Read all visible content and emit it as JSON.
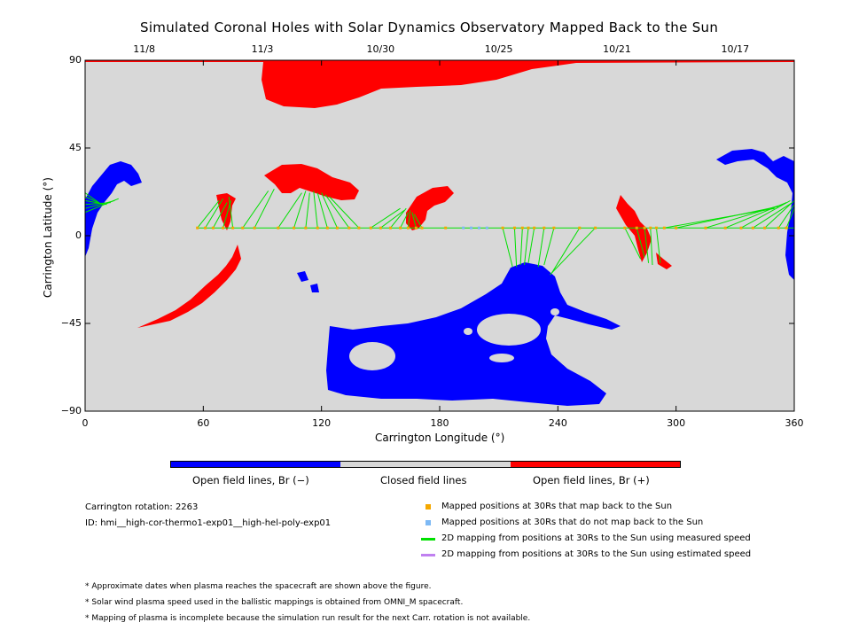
{
  "chart_data": {
    "type": "scatter",
    "title": "Simulated Coronal Holes with Solar Dynamics Observatory Mapped Back to the Sun",
    "xlabel": "Carrington Longitude (°)",
    "ylabel": "Carrington Latitude (°)",
    "xlim": [
      0,
      360
    ],
    "ylim": [
      -90,
      90
    ],
    "xticks": [
      "0",
      "60",
      "120",
      "180",
      "240",
      "300",
      "360"
    ],
    "yticks": [
      "90",
      "45",
      "0",
      "−45",
      "−90"
    ],
    "top_axis_dates": [
      {
        "label": "11/8",
        "lon": 30
      },
      {
        "label": "11/3",
        "lon": 90
      },
      {
        "label": "10/30",
        "lon": 150
      },
      {
        "label": "10/25",
        "lon": 210
      },
      {
        "label": "10/21",
        "lon": 270
      },
      {
        "label": "10/17",
        "lon": 330
      }
    ],
    "colors": {
      "closed": "#d8d8d8",
      "open_negative": "#0000ff",
      "open_positive": "#ff0000",
      "mapped": "#f5a800",
      "unmapped": "#7db9f5",
      "measured_speed": "#00e000",
      "estimated_speed": "#c080f0"
    },
    "colorbar": {
      "labels": [
        "Open field lines, Br (−)",
        "Closed field lines",
        "Open field lines, Br (+)"
      ]
    },
    "series": [
      {
        "name": "Mapped positions at 30Rs that map back to the Sun",
        "points": [
          [
            57,
            4
          ],
          [
            61,
            4
          ],
          [
            65,
            4
          ],
          [
            70,
            4
          ],
          [
            75,
            4
          ],
          [
            80,
            4
          ],
          [
            86,
            4
          ],
          [
            98,
            4
          ],
          [
            106,
            4
          ],
          [
            112,
            4
          ],
          [
            118,
            4
          ],
          [
            123,
            4
          ],
          [
            128,
            4
          ],
          [
            134,
            4
          ],
          [
            139,
            4
          ],
          [
            145,
            4
          ],
          [
            150,
            4
          ],
          [
            155,
            4
          ],
          [
            160,
            4
          ],
          [
            164,
            4
          ],
          [
            168,
            4
          ],
          [
            171,
            4
          ],
          [
            183,
            4
          ],
          [
            212,
            4
          ],
          [
            218,
            4
          ],
          [
            222,
            4
          ],
          [
            225,
            4
          ],
          [
            228,
            4
          ],
          [
            233,
            4
          ],
          [
            238,
            4
          ],
          [
            251,
            4
          ],
          [
            259,
            4
          ],
          [
            274,
            4
          ],
          [
            280,
            4
          ],
          [
            284,
            4
          ],
          [
            287,
            4
          ],
          [
            290,
            4
          ],
          [
            294,
            4
          ],
          [
            300,
            4
          ],
          [
            315,
            4
          ],
          [
            325,
            4
          ],
          [
            333,
            4
          ],
          [
            339,
            4
          ],
          [
            345,
            4
          ],
          [
            352,
            4
          ],
          [
            356,
            4
          ]
        ]
      },
      {
        "name": "Mapped positions at 30Rs that do not map back to the Sun",
        "points": [
          [
            192,
            4
          ],
          [
            196,
            4
          ],
          [
            200,
            4
          ],
          [
            204,
            4
          ]
        ]
      },
      {
        "name": "2D mapping from positions at 30Rs to the Sun using measured speed",
        "segments": [
          [
            [
              57,
              4
            ],
            [
              68,
              18
            ]
          ],
          [
            [
              61,
              4
            ],
            [
              70,
              19
            ]
          ],
          [
            [
              65,
              4
            ],
            [
              72,
              17
            ]
          ],
          [
            [
              70,
              4
            ],
            [
              74,
              18
            ]
          ],
          [
            [
              75,
              4
            ],
            [
              73,
              20
            ]
          ],
          [
            [
              80,
              4
            ],
            [
              93,
              23
            ]
          ],
          [
            [
              86,
              4
            ],
            [
              96,
              24
            ]
          ],
          [
            [
              98,
              4
            ],
            [
              110,
              22
            ]
          ],
          [
            [
              106,
              4
            ],
            [
              112,
              23
            ]
          ],
          [
            [
              112,
              4
            ],
            [
              114,
              22
            ]
          ],
          [
            [
              118,
              4
            ],
            [
              116,
              23
            ]
          ],
          [
            [
              123,
              4
            ],
            [
              118,
              22
            ]
          ],
          [
            [
              128,
              4
            ],
            [
              120,
              22
            ]
          ],
          [
            [
              134,
              4
            ],
            [
              122,
              21
            ]
          ],
          [
            [
              139,
              4
            ],
            [
              124,
              20
            ]
          ],
          [
            [
              145,
              4
            ],
            [
              160,
              14
            ]
          ],
          [
            [
              150,
              4
            ],
            [
              162,
              13
            ]
          ],
          [
            [
              155,
              4
            ],
            [
              163,
              14
            ]
          ],
          [
            [
              160,
              4
            ],
            [
              164,
              12
            ]
          ],
          [
            [
              164,
              4
            ],
            [
              165,
              13
            ]
          ],
          [
            [
              168,
              4
            ],
            [
              166,
              12
            ]
          ],
          [
            [
              171,
              4
            ],
            [
              167,
              11
            ]
          ],
          [
            [
              212,
              4
            ],
            [
              217,
              -16
            ]
          ],
          [
            [
              218,
              4
            ],
            [
              219,
              -16
            ]
          ],
          [
            [
              222,
              4
            ],
            [
              221,
              -15
            ]
          ],
          [
            [
              225,
              4
            ],
            [
              223,
              -15
            ]
          ],
          [
            [
              228,
              4
            ],
            [
              225,
              -14
            ]
          ],
          [
            [
              233,
              4
            ],
            [
              230,
              -16
            ]
          ],
          [
            [
              238,
              4
            ],
            [
              233,
              -15
            ]
          ],
          [
            [
              251,
              4
            ],
            [
              237,
              -19
            ]
          ],
          [
            [
              259,
              4
            ],
            [
              236,
              -20
            ]
          ],
          [
            [
              274,
              4
            ],
            [
              282,
              -12
            ]
          ],
          [
            [
              280,
              4
            ],
            [
              284,
              -11
            ]
          ],
          [
            [
              284,
              4
            ],
            [
              286,
              -14
            ]
          ],
          [
            [
              287,
              4
            ],
            [
              288,
              -15
            ]
          ],
          [
            [
              290,
              4
            ],
            [
              292,
              -14
            ]
          ],
          [
            [
              294,
              4
            ],
            [
              350,
              14
            ]
          ],
          [
            [
              300,
              4
            ],
            [
              352,
              15
            ]
          ],
          [
            [
              315,
              4
            ],
            [
              354,
              16
            ]
          ],
          [
            [
              325,
              4
            ],
            [
              356,
              17
            ]
          ],
          [
            [
              333,
              4
            ],
            [
              358,
              18
            ]
          ],
          [
            [
              339,
              4
            ],
            [
              359,
              17
            ]
          ],
          [
            [
              345,
              4
            ],
            [
              360,
              18
            ]
          ],
          [
            [
              352,
              4
            ],
            [
              360,
              16
            ]
          ],
          [
            [
              356,
              4
            ],
            [
              360,
              14
            ]
          ],
          [
            [
              0,
              22
            ],
            [
              7,
              17
            ]
          ],
          [
            [
              0,
              20
            ],
            [
              9,
              16
            ]
          ],
          [
            [
              0,
              18
            ],
            [
              11,
              16
            ]
          ],
          [
            [
              0,
              16
            ],
            [
              13,
              17
            ]
          ],
          [
            [
              0,
              14
            ],
            [
              15,
              18
            ]
          ],
          [
            [
              0,
              12
            ],
            [
              17,
              19
            ]
          ]
        ]
      },
      {
        "name": "2D mapping from positions at 30Rs to the Sun using estimated speed",
        "segments": []
      }
    ],
    "legend": "bottom-right"
  },
  "info": {
    "rotation": "Carrington rotation: 2263",
    "id": "ID: hmi__high-cor-thermo1-exp01__high-hel-poly-exp01"
  },
  "footnotes": [
    "* Approximate dates when plasma reaches the spacecraft are shown above the figure.",
    "* Solar wind plasma speed used in the ballistic mappings is obtained from OMNI_M spacecraft.",
    "* Mapping of plasma is incomplete because the simulation run result for the next Carr. rotation is not available."
  ]
}
